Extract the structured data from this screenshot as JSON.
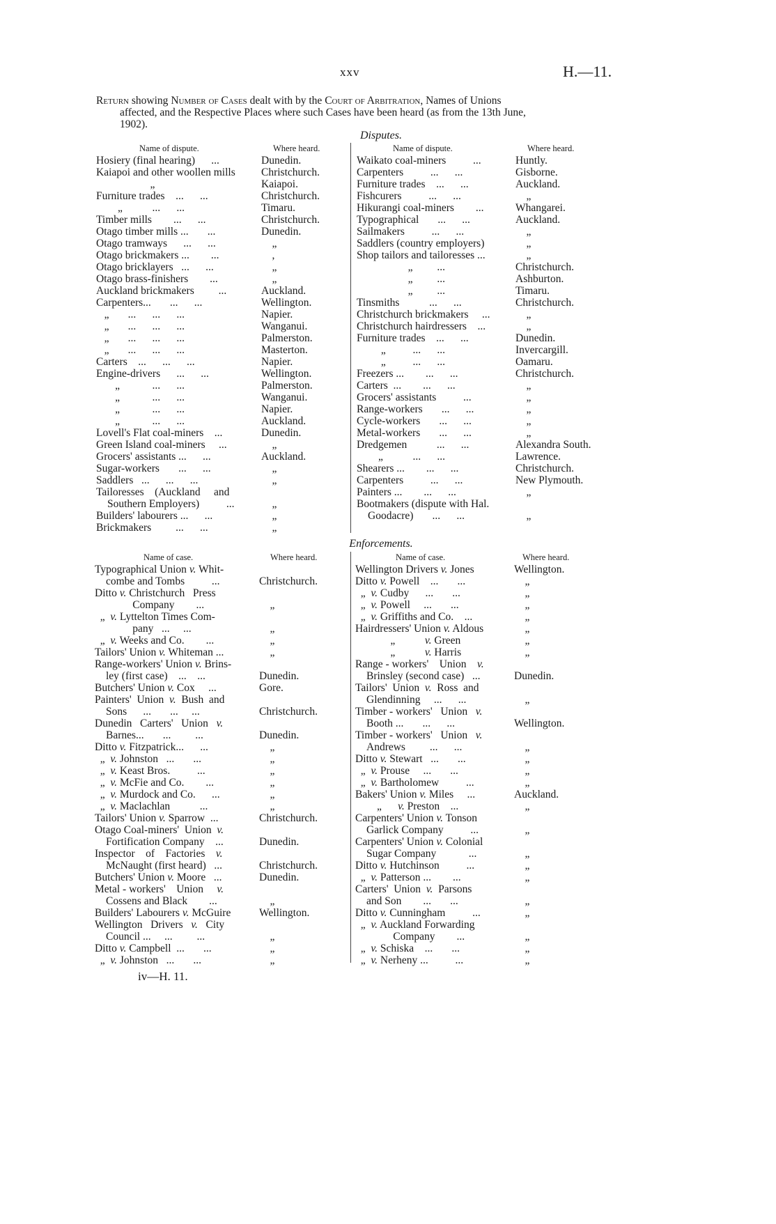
{
  "page_number": "xxv",
  "report_ref": "H.—11.",
  "intro": {
    "lead": "Return",
    "a": " showing ",
    "b": "Number of Cases",
    "c": " dealt with by the ",
    "d": "Court of Arbitration",
    "e": ", Names of Unions",
    "line2": "affected, and the Respective Places where such Cases have been heard (as from the 13th June,",
    "line3": "1902)."
  },
  "disputes": {
    "title": "Disputes.",
    "col_name": "Name of dispute.",
    "col_place": "Where heard.",
    "left": [
      {
        "n": "Hosiery (final hearing)      ...",
        "p": "Dunedin."
      },
      {
        "n": "Kaiapoi and other woollen mills",
        "p": "Christchurch."
      },
      {
        "n": "                    „",
        "p": "Kaiapoi."
      },
      {
        "n": "Furniture trades    ...      ...",
        "p": "Christchurch."
      },
      {
        "n": "        „           ...      ...",
        "p": "Timaru."
      },
      {
        "n": "Timber mills        ...      ...",
        "p": "Christchurch."
      },
      {
        "n": "Otago timber mills ...       ...",
        "p": "Dunedin."
      },
      {
        "n": "Otago tramways      ...      ...",
        "p": "    „"
      },
      {
        "n": "Otago brickmakers ...        ...",
        "p": "    ,"
      },
      {
        "n": "Otago bricklayers   ...      ...",
        "p": "    „"
      },
      {
        "n": "Otago brass-finishers        ...",
        "p": "    „"
      },
      {
        "n": "Auckland brickmakers         ...",
        "p": "Auckland."
      },
      {
        "n": "Carpenters...       ...      ...",
        "p": "Wellington."
      },
      {
        "n": "   „       ...      ...      ...",
        "p": "Napier."
      },
      {
        "n": "   „       ...      ...      ...",
        "p": "Wanganui."
      },
      {
        "n": "   „       ...      ...      ...",
        "p": "Palmerston."
      },
      {
        "n": "   „       ...      ...      ...",
        "p": "Masterton."
      },
      {
        "n": "Carters    ...      ...      ...",
        "p": "Napier."
      },
      {
        "n": "Engine-drivers      ...      ...",
        "p": "Wellington."
      },
      {
        "n": "       „            ...      ...",
        "p": "Palmerston."
      },
      {
        "n": "       „            ...      ...",
        "p": "Wanganui."
      },
      {
        "n": "       „            ...      ...",
        "p": "Napier."
      },
      {
        "n": "       „            ...      ...",
        "p": "Auckland."
      },
      {
        "n": "Lovell's Flat coal-miners    ...",
        "p": "Dunedin."
      },
      {
        "n": "Green Island coal-miners     ...",
        "p": "    „"
      },
      {
        "n": "Grocers' assistants ...      ...",
        "p": "Auckland."
      },
      {
        "n": "Sugar-workers       ...      ...",
        "p": "    „"
      },
      {
        "n": "Saddlers   ...      ...      ...",
        "p": "    „"
      },
      {
        "n": "Tailoresses    (Auckland     and",
        "p": ""
      },
      {
        "n": "Southern Employers)          ...",
        "p": "    „",
        "i": true
      },
      {
        "n": "Builders' labourers ...      ...",
        "p": "    „"
      },
      {
        "n": "Brickmakers         ...      ...",
        "p": "    „"
      }
    ],
    "right": [
      {
        "n": "Waikato coal-miners          ...",
        "p": "Huntly."
      },
      {
        "n": "Carpenters          ...      ...",
        "p": "Gisborne."
      },
      {
        "n": "Furniture trades    ...      ...",
        "p": "Auckland."
      },
      {
        "n": "Fishcurers          ...      ...",
        "p": "    „"
      },
      {
        "n": "Hikurangi coal-miners        ...",
        "p": "Whangarei."
      },
      {
        "n": "Typographical       ...      ...",
        "p": "Auckland."
      },
      {
        "n": "Sailmakers          ...      ...",
        "p": "    „"
      },
      {
        "n": "Saddlers (country employers)",
        "p": "    „"
      },
      {
        "n": "Shop tailors and tailoresses ...",
        "p": "    „"
      },
      {
        "n": "                   „         ...",
        "p": "Christchurch."
      },
      {
        "n": "                   „         ...",
        "p": "Ashburton."
      },
      {
        "n": "                   „         ...",
        "p": "Timaru."
      },
      {
        "n": "Tinsmiths           ...      ...",
        "p": "Christchurch."
      },
      {
        "n": "Christchurch brickmakers     ...",
        "p": "    „"
      },
      {
        "n": "Christchurch hairdressers    ...",
        "p": "    „"
      },
      {
        "n": "Furniture trades    ...      ...",
        "p": "Dunedin."
      },
      {
        "n": "         „          ...      ...",
        "p": "Invercargill."
      },
      {
        "n": "         „          ...      ...",
        "p": "Oamaru."
      },
      {
        "n": "Freezers ...        ...      ...",
        "p": "Christchurch."
      },
      {
        "n": "Carters  ...        ...      ...",
        "p": "    „"
      },
      {
        "n": "Grocers' assistants          ...",
        "p": "    „"
      },
      {
        "n": "Range-workers       ...      ...",
        "p": "    „"
      },
      {
        "n": "Cycle-workers       ...      ...",
        "p": "    „"
      },
      {
        "n": "Metal-workers       ...      ...",
        "p": "    „"
      },
      {
        "n": "Dredgemen           ...      ...",
        "p": "Alexandra South."
      },
      {
        "n": "        „           ...      ...",
        "p": "Lawrence."
      },
      {
        "n": "Shearers ...        ...      ...",
        "p": "Christchurch."
      },
      {
        "n": "Carpenters          ...      ...",
        "p": "New Plymouth."
      },
      {
        "n": "Painters ...        ...      ...",
        "p": "    „"
      },
      {
        "n": "Bootmakers (dispute with Hal.",
        "p": ""
      },
      {
        "n": "Goodacre)       ...      ...",
        "p": "    „",
        "i": true
      }
    ]
  },
  "enforcements": {
    "title": "Enforcements.",
    "col_name": "Name of case.",
    "col_place": "Where heard.",
    "left": [
      {
        "n": "Typographical Union v. Whit-",
        "p": ""
      },
      {
        "n": "combe and Tombs          ...",
        "p": "Christchurch.",
        "i": true
      },
      {
        "n": "Ditto v. Christchurch   Press",
        "p": ""
      },
      {
        "n": "              Company        ...",
        "p": "    „"
      },
      {
        "n": "  „  v. Lyttelton Times Com-",
        "p": ""
      },
      {
        "n": "              pany   ...     ...",
        "p": "    „"
      },
      {
        "n": "  „  v. Weeks and Co.        ...",
        "p": "    „"
      },
      {
        "n": "Tailors' Union v. Whiteman ...",
        "p": "    „"
      },
      {
        "n": "Range-workers' Union v. Brins-",
        "p": ""
      },
      {
        "n": "ley (first case)    ...    ...",
        "p": "Dunedin.",
        "i": true
      },
      {
        "n": "Butchers' Union v. Cox     ...",
        "p": "Gore."
      },
      {
        "n": "Painters'  Union  v.  Bush  and",
        "p": ""
      },
      {
        "n": "Sons      ...       ...     ...",
        "p": "Christchurch.",
        "i": true
      },
      {
        "n": "Dunedin   Carters'   Union   v.",
        "p": ""
      },
      {
        "n": "Barnes...       ...         ...",
        "p": "Dunedin.",
        "i": true
      },
      {
        "n": "Ditto v. Fitzpatrick...      ...",
        "p": "    „"
      },
      {
        "n": "  „  v. Johnston   ...       ...",
        "p": "    „"
      },
      {
        "n": "  „  v. Keast Bros.          ...",
        "p": "    „"
      },
      {
        "n": "  „  v. McFie and Co.        ...",
        "p": "    „"
      },
      {
        "n": "  „  v. Murdock and Co.      ...",
        "p": "    „"
      },
      {
        "n": "  „  v. Maclachlan           ...",
        "p": "    „"
      },
      {
        "n": "Tailors' Union v. Sparrow  ...",
        "p": "Christchurch."
      },
      {
        "n": "Otago Coal-miners'  Union  v.",
        "p": ""
      },
      {
        "n": "Fortification Company    ...",
        "p": "Dunedin.",
        "i": true
      },
      {
        "n": "Inspector    of    Factories    v.",
        "p": ""
      },
      {
        "n": "McNaught (first heard)   ...",
        "p": "Christchurch.",
        "i": true
      },
      {
        "n": "Butchers' Union v. Moore   ...",
        "p": "Dunedin."
      },
      {
        "n": "Metal - workers'    Union     v.",
        "p": ""
      },
      {
        "n": "Cossens and Black        ...",
        "p": "    „",
        "i": true
      },
      {
        "n": "Builders' Labourers v. McGuire",
        "p": "Wellington."
      },
      {
        "n": "Wellington   Drivers   v.   City",
        "p": ""
      },
      {
        "n": "Council ...     ...         ...",
        "p": "    „",
        "i": true
      },
      {
        "n": "Ditto v. Campbell  ...       ...",
        "p": "    „"
      },
      {
        "n": "  „  v. Johnston   ...       ...",
        "p": "    „"
      }
    ],
    "right": [
      {
        "n": "Wellington Drivers v. Jones",
        "p": "Wellington."
      },
      {
        "n": "Ditto v. Powell    ...       ...",
        "p": "    „"
      },
      {
        "n": "  „  v. Cudby      ...       ...",
        "p": "    „"
      },
      {
        "n": "  „  v. Powell     ...       ...",
        "p": "    „"
      },
      {
        "n": "  „  v. Griffiths and Co.    ...",
        "p": "    „"
      },
      {
        "n": "Hairdressers' Union v. Aldous",
        "p": "    „"
      },
      {
        "n": "             „           v. Green",
        "p": "    „"
      },
      {
        "n": "             „           v. Harris",
        "p": "    „"
      },
      {
        "n": "Range - workers'    Union    v.",
        "p": ""
      },
      {
        "n": "Brinsley (second case)   ...",
        "p": "Dunedin.",
        "i": true
      },
      {
        "n": "Tailors'  Union  v.  Ross  and",
        "p": ""
      },
      {
        "n": "Glendinning     ...      ...",
        "p": "    „",
        "i": true
      },
      {
        "n": "Timber - workers'   Union   v.",
        "p": ""
      },
      {
        "n": "Booth ...       ...      ...",
        "p": "Wellington.",
        "i": true
      },
      {
        "n": "Timber - workers'   Union   v.",
        "p": ""
      },
      {
        "n": "Andrews         ...      ...",
        "p": "    „",
        "i": true
      },
      {
        "n": "Ditto v. Stewart   ...       ...",
        "p": "    „"
      },
      {
        "n": "  „  v. Prouse     ...       ...",
        "p": "    „"
      },
      {
        "n": "  „  v. Bartholomew          ...",
        "p": "    „"
      },
      {
        "n": "Bakers' Union v. Miles     ...",
        "p": "Auckland."
      },
      {
        "n": "        „      v. Preston    ...",
        "p": "    „"
      },
      {
        "n": "Carpenters' Union v. Tonson",
        "p": ""
      },
      {
        "n": "Garlick Company          ...",
        "p": "    „",
        "i": true
      },
      {
        "n": "Carpenters' Union v. Colonial",
        "p": ""
      },
      {
        "n": "Sugar Company            ...",
        "p": "    „",
        "i": true
      },
      {
        "n": "Ditto v. Hutchinson          ...",
        "p": "    „"
      },
      {
        "n": "  „  v. Patterson ...        ...",
        "p": "    „"
      },
      {
        "n": "Carters'  Union  v.  Parsons",
        "p": ""
      },
      {
        "n": "and Son        ...       ...",
        "p": "    „",
        "i": true
      },
      {
        "n": "Ditto v. Cunningham          ...",
        "p": "    „"
      },
      {
        "n": "  „  v. Auckland Forwarding",
        "p": ""
      },
      {
        "n": "              Company        ...",
        "p": "    „"
      },
      {
        "n": "  „  v. Schiska    ...       ...",
        "p": "    „"
      },
      {
        "n": "  „  v. Nerheny ...          ...",
        "p": "    „"
      }
    ]
  },
  "footer": "iv—H. 11."
}
